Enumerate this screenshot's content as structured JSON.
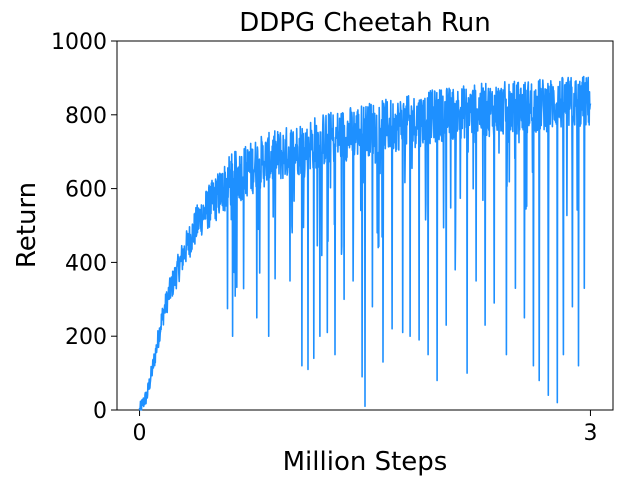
{
  "chart_data": {
    "type": "line",
    "title": "DDPG Cheetah Run",
    "xlabel": "Million Steps",
    "ylabel": "Return",
    "xlim": [
      -0.15,
      3.15
    ],
    "ylim": [
      0,
      1000
    ],
    "xticks": [
      0,
      3
    ],
    "xtick_labels": [
      "0",
      "3"
    ],
    "yticks": [
      0,
      200,
      400,
      600,
      800,
      1000
    ],
    "ytick_labels": [
      "0",
      "200",
      "400",
      "600",
      "800",
      "1000"
    ],
    "grid": false,
    "legend": "none",
    "series": [
      {
        "color": "#1e90ff",
        "trend_x": [
          0,
          0.05,
          0.1,
          0.15,
          0.2,
          0.3,
          0.4,
          0.5,
          0.6,
          0.8,
          1.0,
          1.2,
          1.5,
          1.8,
          2.0,
          2.2,
          2.5,
          2.8,
          3.0
        ],
        "trend_y": [
          0,
          40,
          140,
          250,
          320,
          430,
          520,
          570,
          620,
          670,
          700,
          730,
          760,
          780,
          800,
          810,
          820,
          830,
          835
        ],
        "x": [
          0,
          0.02,
          0.04,
          0.06,
          0.08,
          0.1,
          0.12,
          0.14,
          0.16,
          0.18,
          0.2,
          0.22,
          0.25,
          0.28,
          0.31,
          0.34,
          0.37,
          0.4,
          0.43,
          0.46,
          0.5,
          0.55,
          0.6,
          0.65,
          0.7,
          0.75,
          0.8,
          0.85,
          0.9,
          0.95,
          1.0,
          1.05,
          1.1,
          1.15,
          1.2,
          1.25,
          1.3,
          1.35,
          1.4,
          1.45,
          1.5,
          1.55,
          1.6,
          1.65,
          1.7,
          1.75,
          1.8,
          1.85,
          1.9,
          1.95,
          2.0,
          2.05,
          2.1,
          2.15,
          2.2,
          2.25,
          2.3,
          2.35,
          2.4,
          2.45,
          2.5,
          2.55,
          2.6,
          2.65,
          2.7,
          2.75,
          2.8,
          2.85,
          2.9,
          2.95,
          3.0
        ],
        "y": [
          0,
          5,
          20,
          60,
          120,
          210,
          170,
          260,
          230,
          300,
          340,
          290,
          420,
          380,
          470,
          440,
          500,
          520,
          480,
          560,
          580,
          600,
          620,
          640,
          650,
          660,
          680,
          690,
          700,
          710,
          720,
          730,
          740,
          745,
          750,
          760,
          765,
          770,
          775,
          780,
          785,
          790,
          790,
          795,
          800,
          800,
          805,
          810,
          810,
          815,
          820,
          820,
          825,
          825,
          830,
          830,
          835,
          835,
          840,
          840,
          845,
          845,
          850,
          850,
          850,
          855,
          855,
          860,
          860,
          860,
          860
        ],
        "dips_x": [
          0.62,
          0.78,
          0.86,
          1.0,
          1.08,
          1.12,
          1.16,
          1.2,
          1.25,
          1.3,
          1.36,
          1.42,
          1.48,
          1.5,
          1.55,
          1.62,
          1.68,
          1.75,
          1.8,
          1.86,
          1.92,
          1.98,
          2.04,
          2.1,
          2.18,
          2.24,
          2.3,
          2.36,
          2.44,
          2.5,
          2.56,
          2.62,
          2.66,
          2.72,
          2.78,
          2.82,
          2.88,
          2.92,
          2.96
        ],
        "dips_y": [
          200,
          250,
          200,
          350,
          120,
          110,
          140,
          200,
          210,
          150,
          300,
          350,
          90,
          10,
          280,
          130,
          220,
          210,
          200,
          190,
          150,
          80,
          230,
          380,
          100,
          350,
          230,
          290,
          150,
          330,
          250,
          120,
          80,
          40,
          20,
          150,
          280,
          120,
          330
        ]
      }
    ]
  }
}
